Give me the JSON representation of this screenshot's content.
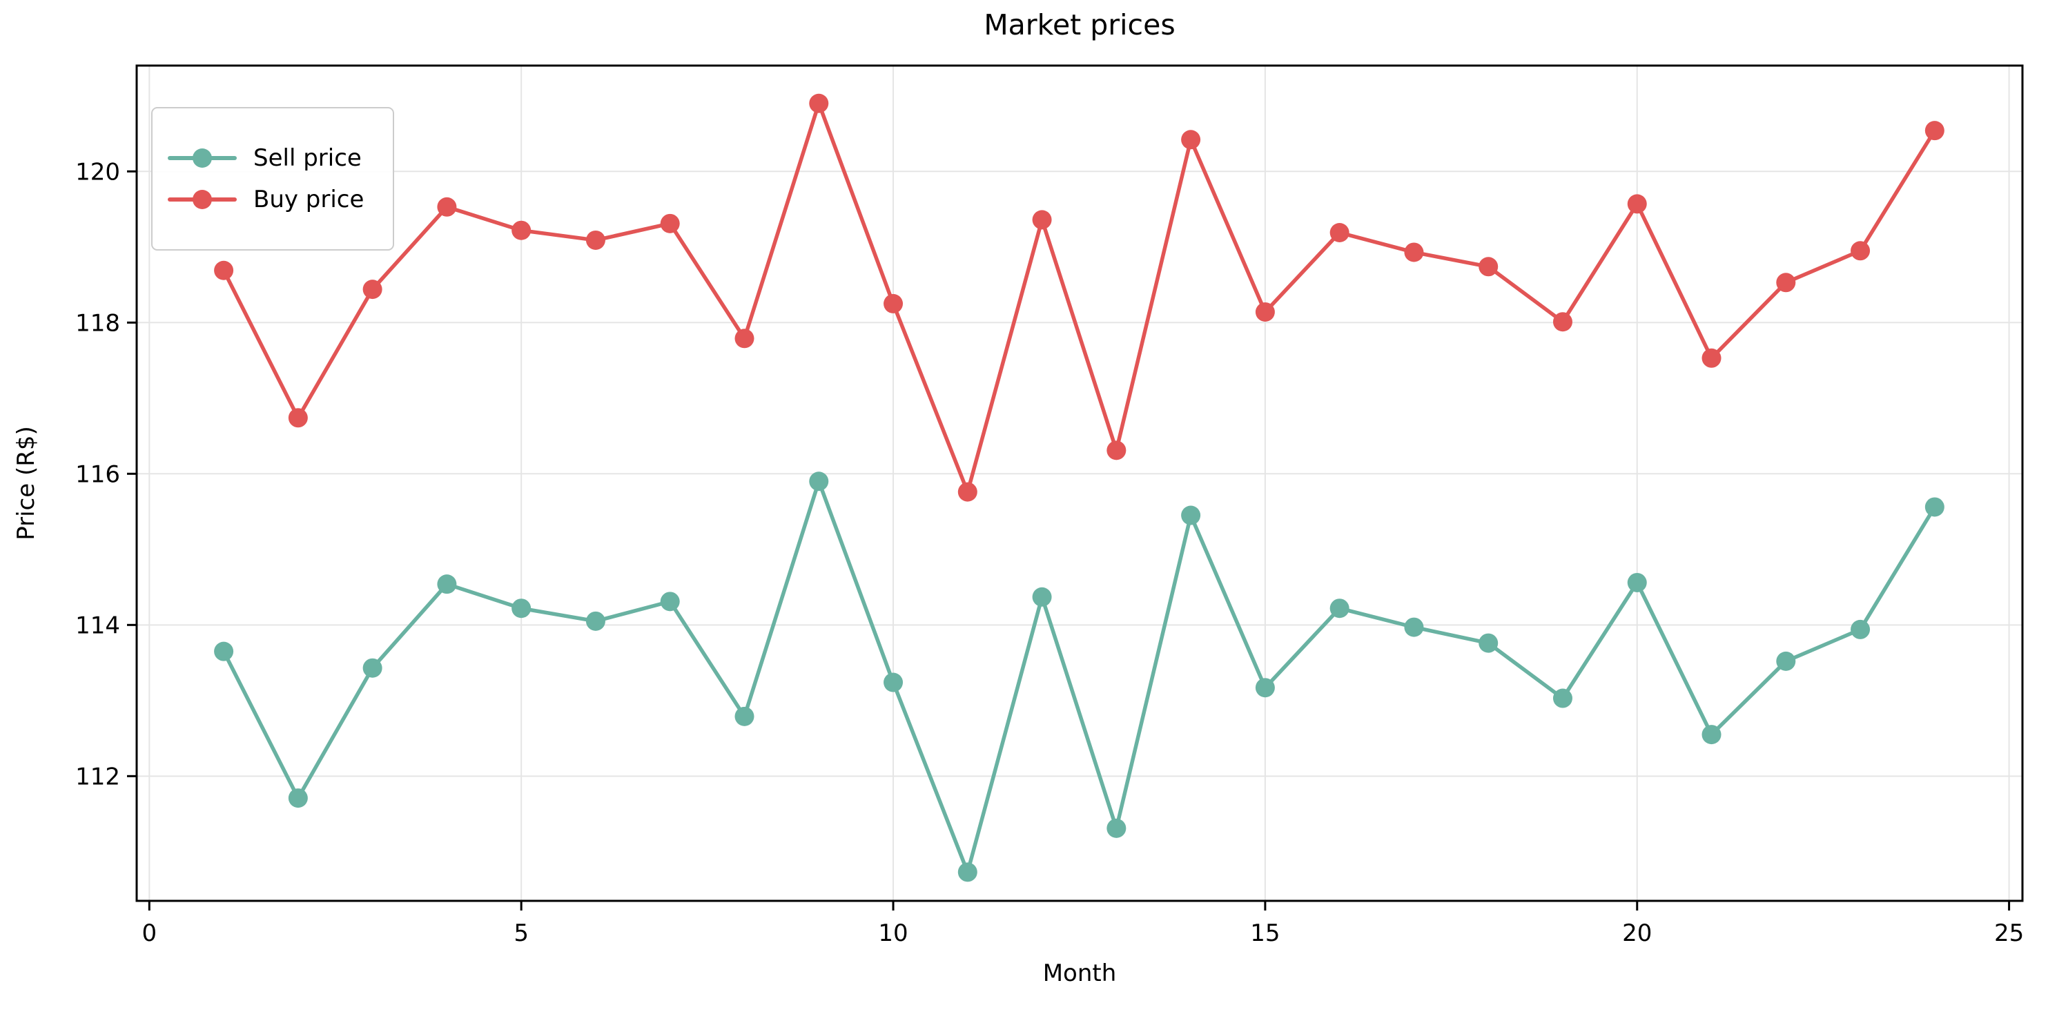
{
  "figure": {
    "title": "Market prices",
    "xlabel": "Month",
    "ylabel": "Price (R$)"
  },
  "chart_data": {
    "type": "line",
    "title": "Market prices",
    "xlabel": "Month",
    "ylabel": "Price (R$)",
    "x": [
      1,
      2,
      3,
      4,
      5,
      6,
      7,
      8,
      9,
      10,
      11,
      12,
      13,
      14,
      15,
      16,
      17,
      18,
      19,
      20,
      21,
      22,
      23,
      24
    ],
    "series": [
      {
        "name": "Sell price",
        "color": "#69b2a2",
        "values": [
          113.65,
          111.71,
          113.43,
          114.54,
          114.22,
          114.05,
          114.31,
          112.79,
          115.9,
          113.24,
          110.73,
          114.37,
          111.31,
          115.45,
          113.17,
          114.22,
          113.97,
          113.76,
          113.03,
          114.56,
          112.55,
          113.52,
          113.94,
          115.56
        ]
      },
      {
        "name": "Buy price",
        "color": "#e25555",
        "values": [
          118.69,
          116.74,
          118.44,
          119.53,
          119.22,
          119.09,
          119.31,
          117.79,
          120.9,
          118.25,
          115.76,
          119.36,
          116.31,
          120.42,
          118.14,
          119.19,
          118.93,
          118.74,
          118.01,
          119.57,
          117.53,
          118.53,
          118.95,
          120.54
        ]
      }
    ],
    "xlim": [
      -0.17,
      25.18
    ],
    "ylim": [
      110.35,
      121.4
    ],
    "xticks": [
      0,
      5,
      10,
      15,
      20,
      25
    ],
    "yticks": [
      112,
      114,
      116,
      118,
      120
    ],
    "grid": true,
    "grid_color": "#e5e5e5",
    "spine_color": "#000000",
    "legend_position": "upper left"
  }
}
